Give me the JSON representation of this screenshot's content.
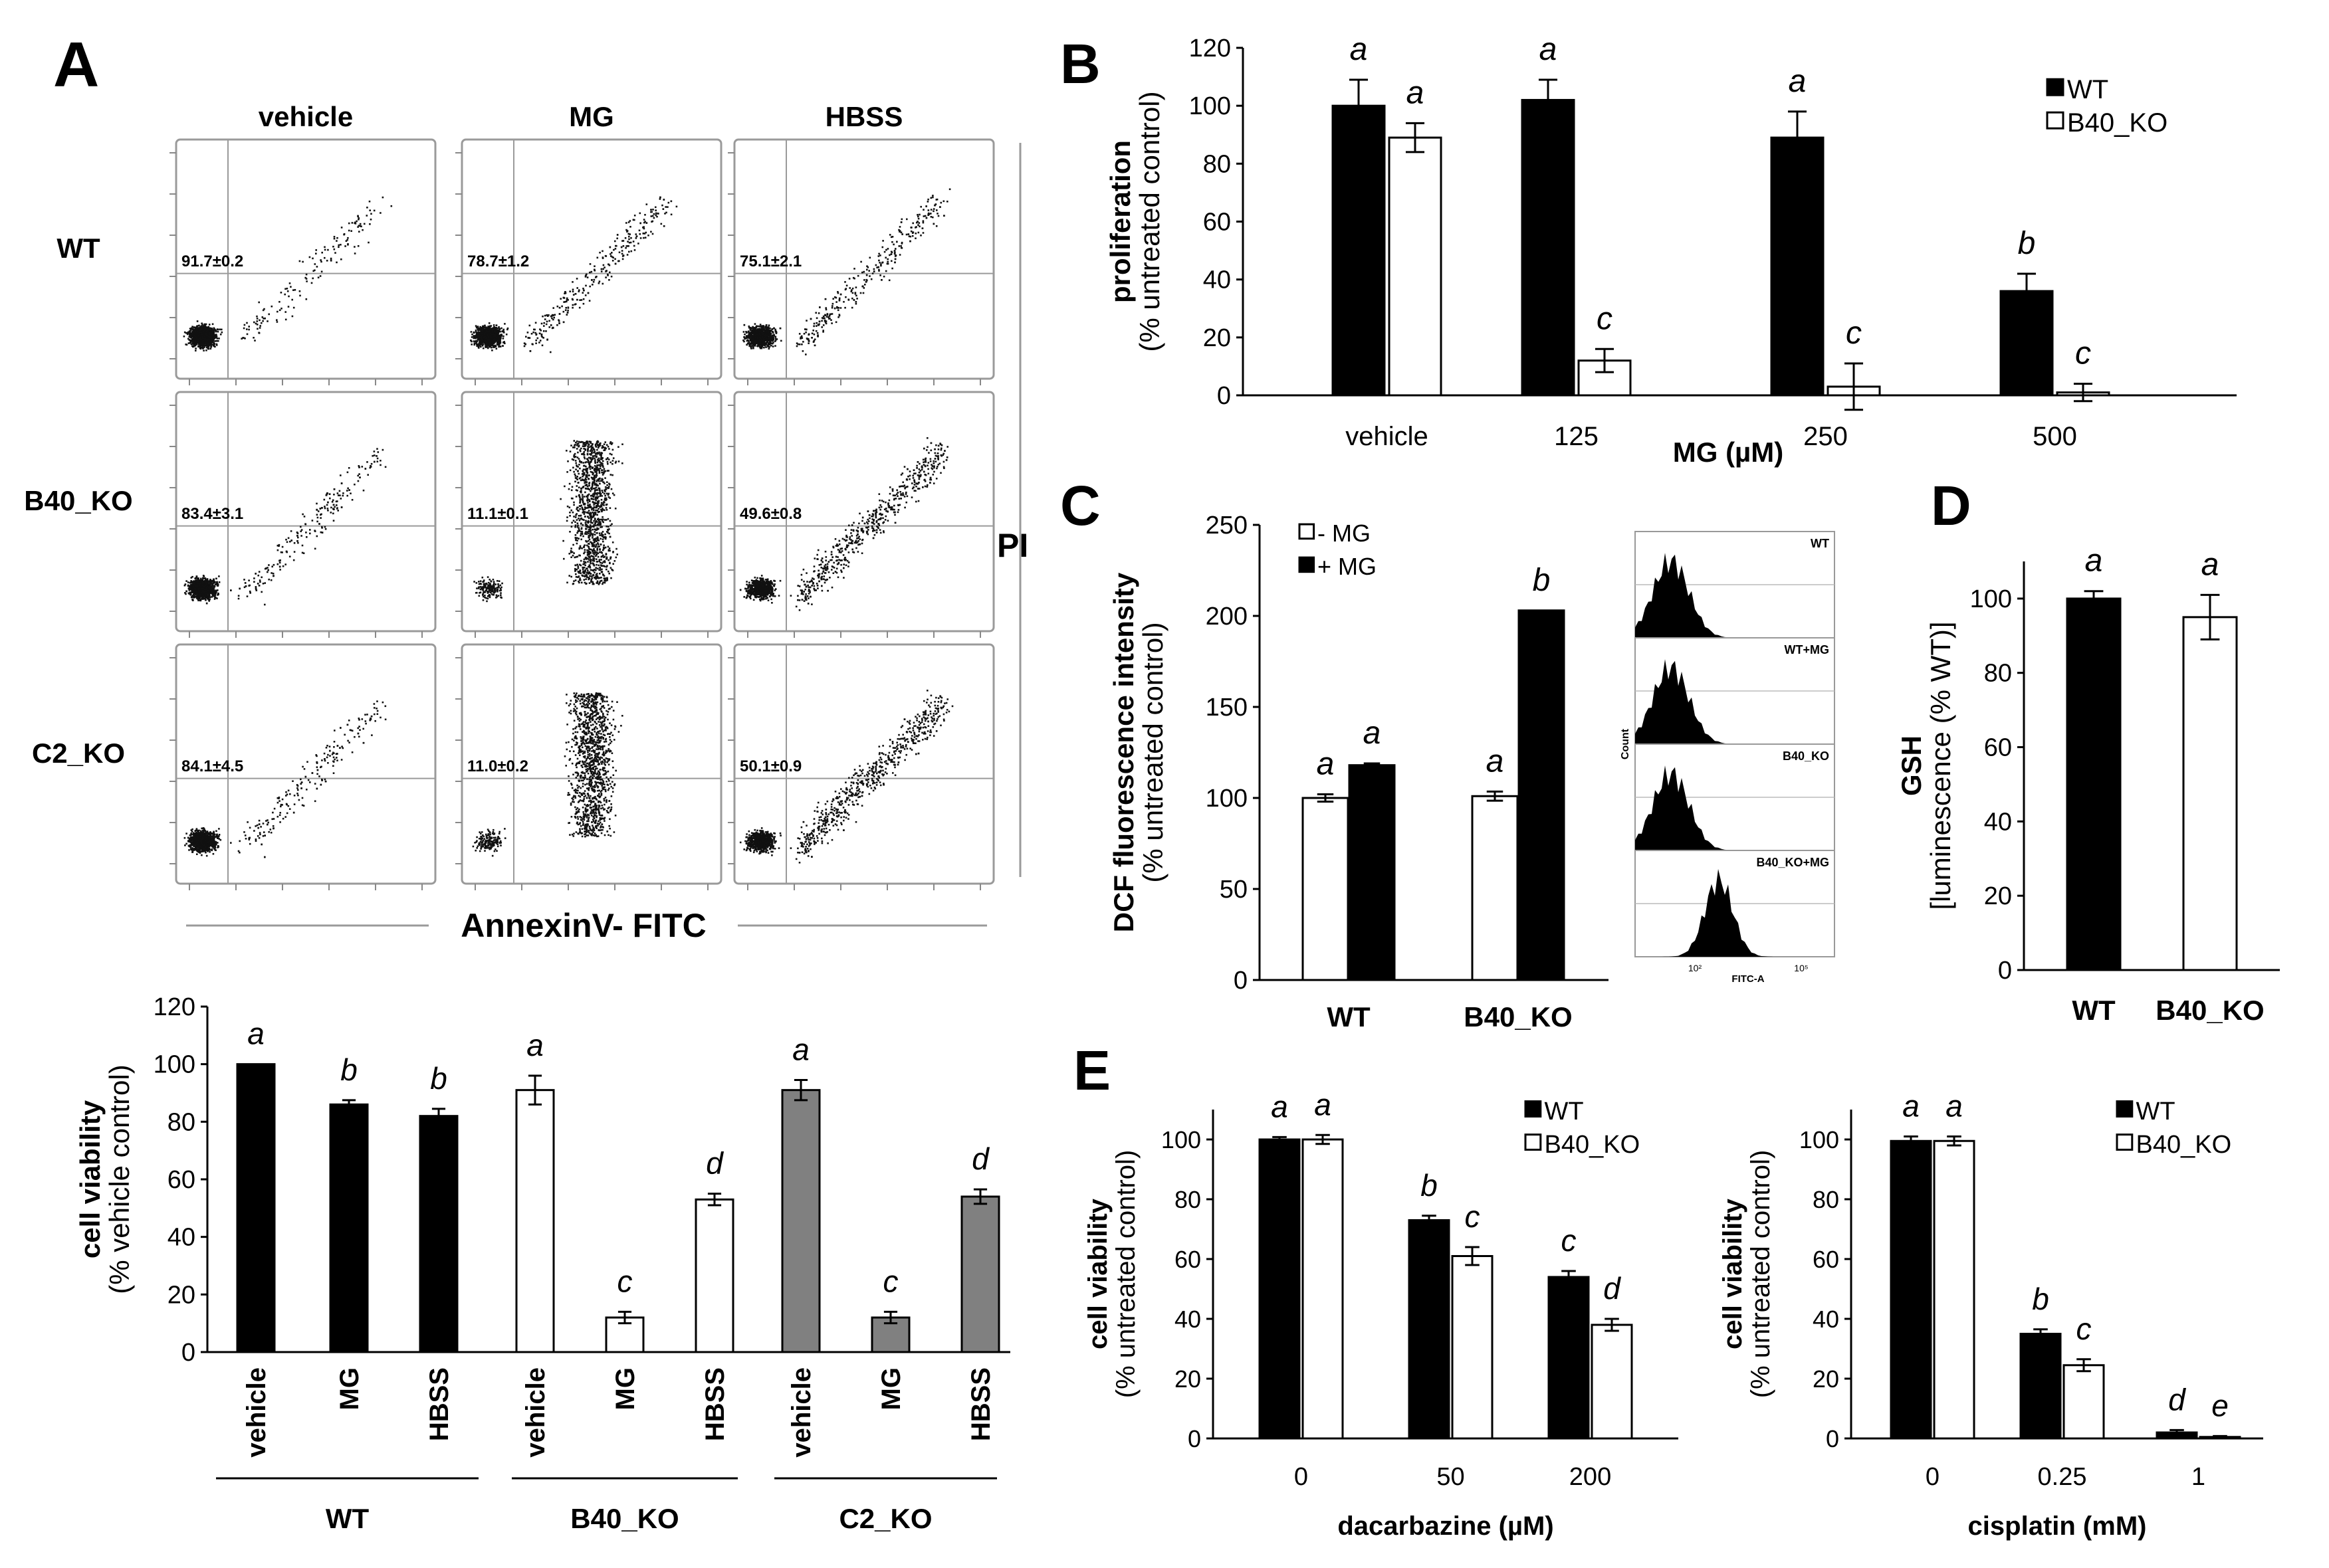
{
  "panel_letters": {
    "A": "A",
    "B": "B",
    "C": "C",
    "D": "D",
    "E": "E"
  },
  "colors": {
    "WT": "#000000",
    "B40_KO": "#ffffff",
    "C2_KO": "#808080",
    "dots": "#111111",
    "gates": "#9a9a9a"
  },
  "flow": {
    "columns": [
      "vehicle",
      "MG",
      "HBSS"
    ],
    "rows": [
      "WT",
      "B40_KO",
      "C2_KO"
    ],
    "y_channel": "PI",
    "x_channel": "AnnexinV- FITC",
    "quadrant_values": [
      [
        "91.7±0.2",
        "78.7±1.2",
        "75.1±2.1"
      ],
      [
        "83.4±3.1",
        "11.1±0.1",
        "49.6±0.8"
      ],
      [
        "84.1±4.5",
        "11.0±0.2",
        "50.1±0.9"
      ]
    ]
  },
  "histogram": {
    "labels": [
      "WT",
      "WT+MG",
      "B40_KO",
      "B40_KO+MG"
    ],
    "ylabel": "Count",
    "xlabel": "FITC-A",
    "tick_a": "10²",
    "tick_b": "10⁵"
  },
  "chart_data": [
    {
      "id": "A_viability",
      "type": "bar",
      "ylabel": "cell viability",
      "ylabel2": "(% vehicle control)",
      "ylim": [
        0,
        120
      ],
      "yticks": [
        0,
        20,
        40,
        60,
        80,
        100,
        120
      ],
      "groups": [
        "WT",
        "B40_KO",
        "C2_KO"
      ],
      "categories": [
        "vehicle",
        "MG",
        "HBSS",
        "vehicle",
        "MG",
        "HBSS",
        "vehicle",
        "MG",
        "HBSS"
      ],
      "series": [
        {
          "name": "viability",
          "values": [
            100,
            86,
            82,
            91,
            12,
            53,
            91,
            12,
            54
          ],
          "errors": [
            0,
            1.5,
            2.5,
            5,
            2,
            2,
            3.5,
            2,
            2.5
          ],
          "fills": [
            "WT",
            "WT",
            "WT",
            "B40_KO",
            "B40_KO",
            "B40_KO",
            "C2_KO",
            "C2_KO",
            "C2_KO"
          ],
          "letters": [
            "a",
            "b",
            "b",
            "a",
            "c",
            "d",
            "a",
            "c",
            "d"
          ]
        }
      ]
    },
    {
      "id": "B_proliferation",
      "type": "bar",
      "ylabel": "proliferation",
      "ylabel2": "(% untreated control)",
      "xlabel": "MG (µM)",
      "ylim": [
        0,
        120
      ],
      "yticks": [
        0,
        20,
        40,
        60,
        80,
        100,
        120
      ],
      "categories": [
        "vehicle",
        "125",
        "250",
        "500"
      ],
      "series": [
        {
          "name": "WT",
          "values": [
            100,
            102,
            89,
            36
          ],
          "errors": [
            9,
            7,
            9,
            6
          ],
          "letters": [
            "a",
            "a",
            "a",
            "b"
          ]
        },
        {
          "name": "B40_KO",
          "values": [
            89,
            12,
            3,
            1
          ],
          "errors": [
            5,
            4,
            8,
            3
          ],
          "letters": [
            "a",
            "c",
            "c",
            "c"
          ]
        }
      ]
    },
    {
      "id": "C_dcf",
      "type": "bar",
      "ylabel": "DCF fluorescence intensity",
      "ylabel2": "(% untreated control)",
      "ylim": [
        0,
        250
      ],
      "yticks": [
        0,
        50,
        100,
        150,
        200,
        250
      ],
      "categories": [
        "WT",
        "B40_KO"
      ],
      "series": [
        {
          "name": "- MG",
          "values": [
            100,
            101
          ],
          "errors": [
            2,
            2.5
          ],
          "letters": [
            "a",
            "a"
          ]
        },
        {
          "name": "+ MG",
          "values": [
            118,
            203
          ],
          "errors": [
            1,
            0
          ],
          "letters": [
            "a",
            "b"
          ]
        }
      ]
    },
    {
      "id": "D_gsh",
      "type": "bar",
      "ylabel": "GSH",
      "ylabel2": "[luminescence (% WT)]",
      "ylim": [
        0,
        110
      ],
      "yticks": [
        0,
        20,
        40,
        60,
        80,
        100
      ],
      "categories": [
        "WT",
        "B40_KO"
      ],
      "series": [
        {
          "name": "GSH",
          "values": [
            100,
            95
          ],
          "errors": [
            2,
            6
          ],
          "letters": [
            "a",
            "a"
          ],
          "fills": [
            "WT",
            "B40_KO"
          ]
        }
      ]
    },
    {
      "id": "E_dacarbazine",
      "type": "bar",
      "ylabel": "cell viability",
      "ylabel2": "(% untreated control)",
      "xlabel": "dacarbazine (µM)",
      "ylim": [
        0,
        110
      ],
      "yticks": [
        0,
        20,
        40,
        60,
        80,
        100
      ],
      "categories": [
        "0",
        "50",
        "200"
      ],
      "series": [
        {
          "name": "WT",
          "values": [
            100,
            73,
            54
          ],
          "errors": [
            0.8,
            1.5,
            2
          ],
          "letters": [
            "a",
            "b",
            "c"
          ]
        },
        {
          "name": "B40_KO",
          "values": [
            100,
            61,
            38
          ],
          "errors": [
            1.5,
            3,
            2
          ],
          "letters": [
            "a",
            "c",
            "d"
          ]
        }
      ]
    },
    {
      "id": "E_cisplatin",
      "type": "bar",
      "ylabel": "cell viability",
      "ylabel2": "(% untreated control)",
      "xlabel": "cisplatin (mM)",
      "ylim": [
        0,
        110
      ],
      "yticks": [
        0,
        20,
        40,
        60,
        80,
        100
      ],
      "categories": [
        "0",
        "0.25",
        "1"
      ],
      "series": [
        {
          "name": "WT",
          "values": [
            99.5,
            35,
            2
          ],
          "errors": [
            1.5,
            1.5,
            0.8
          ],
          "letters": [
            "a",
            "b",
            "d"
          ]
        },
        {
          "name": "B40_KO",
          "values": [
            99.5,
            24.5,
            0.5
          ],
          "errors": [
            1.5,
            2,
            0.3
          ],
          "letters": [
            "a",
            "c",
            "e"
          ]
        }
      ]
    }
  ]
}
